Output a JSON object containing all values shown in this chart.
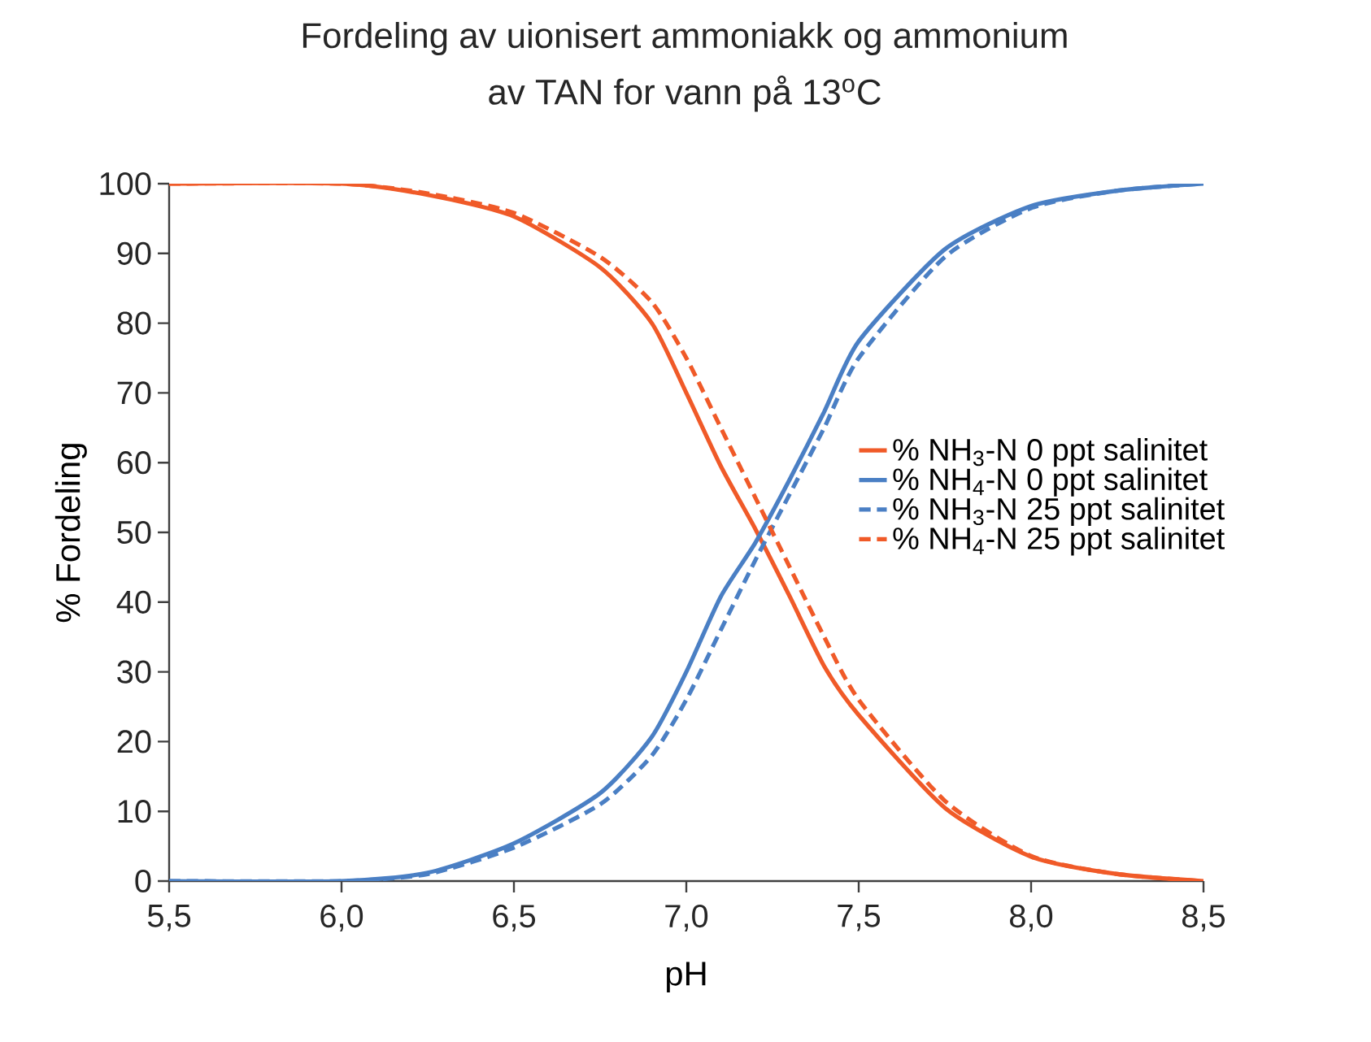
{
  "chart_data": {
    "type": "line",
    "title": "Fordeling av uionisert ammoniakk og ammonium",
    "subtitle": "av TAN for vann på 13$^{o}$C",
    "xlabel": "pH",
    "ylabel": "% Fordeling",
    "xlim": [
      5.5,
      8.5
    ],
    "ylim": [
      0,
      100
    ],
    "xticks": [
      {
        "value": 5.5,
        "label": "5,5"
      },
      {
        "value": 6.0,
        "label": "6,0"
      },
      {
        "value": 6.5,
        "label": "6,5"
      },
      {
        "value": 7.0,
        "label": "7,0"
      },
      {
        "value": 7.5,
        "label": "7,5"
      },
      {
        "value": 8.0,
        "label": "8,0"
      },
      {
        "value": 8.5,
        "label": "8,5"
      }
    ],
    "yticks": [
      0,
      10,
      20,
      30,
      40,
      50,
      60,
      70,
      80,
      90,
      100
    ],
    "grid": false,
    "legend": "right",
    "marker": "none",
    "series": [
      {
        "name": "% NH$_{3}$-N 0 ppt salinitet",
        "color": "#f05a28",
        "line_style": "solid",
        "x": [
          5.5,
          6.0,
          6.25,
          6.5,
          6.75,
          6.9,
          7.0,
          7.1,
          7.2,
          7.3,
          7.4,
          7.5,
          7.75,
          8.0,
          8.25,
          8.5
        ],
        "values": [
          100,
          100,
          98.4,
          95.3,
          88,
          80,
          70,
          59.5,
          50.5,
          40.8,
          30.8,
          23.8,
          10.5,
          3.5,
          1,
          0
        ]
      },
      {
        "name": "% NH$_{4}$-N 0 ppt salinitet",
        "color": "#4a7fc4",
        "line_style": "solid",
        "x": [
          5.5,
          6.0,
          6.25,
          6.5,
          6.75,
          6.9,
          7.0,
          7.1,
          7.2,
          7.3,
          7.4,
          7.5,
          7.75,
          8.0,
          8.25,
          8.5
        ],
        "values": [
          0,
          0,
          1.2,
          5.4,
          12.6,
          20.7,
          30,
          40.8,
          48.5,
          57.6,
          67.3,
          77.4,
          90.6,
          96.8,
          99,
          100
        ]
      },
      {
        "name": "% NH$_{3}$-N 25 ppt salinitet",
        "color": "#4a7fc4",
        "line_style": "dashed",
        "x": [
          5.5,
          6.0,
          6.25,
          6.5,
          6.75,
          6.9,
          7.0,
          7.1,
          7.2,
          7.3,
          7.4,
          7.5,
          7.75,
          8.0,
          8.25,
          8.5
        ],
        "values": [
          0,
          0,
          1,
          4.8,
          11,
          18,
          26,
          36,
          46,
          55.5,
          65,
          75,
          89.5,
          96.5,
          99,
          100
        ]
      },
      {
        "name": "% NH$_{4}$-N 25 ppt salinitet",
        "color": "#f05a28",
        "line_style": "dashed",
        "x": [
          5.5,
          6.0,
          6.25,
          6.5,
          6.75,
          6.9,
          7.0,
          7.1,
          7.2,
          7.3,
          7.4,
          7.5,
          7.75,
          8.0,
          8.25,
          8.5
        ],
        "values": [
          100,
          100,
          98.6,
          95.8,
          89.5,
          83,
          75,
          65,
          55,
          45,
          35,
          26,
          11.5,
          3.6,
          1,
          0
        ]
      }
    ]
  }
}
